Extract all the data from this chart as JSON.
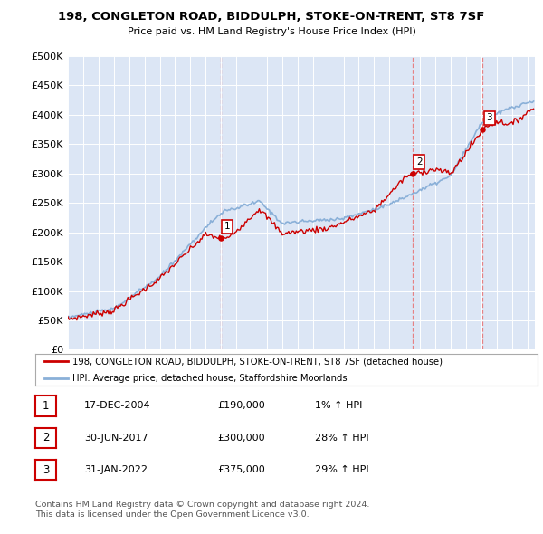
{
  "title": "198, CONGLETON ROAD, BIDDULPH, STOKE-ON-TRENT, ST8 7SF",
  "subtitle": "Price paid vs. HM Land Registry's House Price Index (HPI)",
  "ylim": [
    0,
    500000
  ],
  "yticks": [
    0,
    50000,
    100000,
    150000,
    200000,
    250000,
    300000,
    350000,
    400000,
    450000,
    500000
  ],
  "ytick_labels": [
    "£0",
    "£50K",
    "£100K",
    "£150K",
    "£200K",
    "£250K",
    "£300K",
    "£350K",
    "£400K",
    "£450K",
    "£500K"
  ],
  "house_color": "#cc0000",
  "hpi_color": "#8ab0d8",
  "bg_color": "#dce6f5",
  "plot_bg": "#ffffff",
  "transaction_dates": [
    2004.96,
    2017.5,
    2022.08
  ],
  "transaction_prices": [
    190000,
    300000,
    375000
  ],
  "transaction_labels": [
    "1",
    "2",
    "3"
  ],
  "vline_color": "#e87070",
  "legend_entries": [
    "198, CONGLETON ROAD, BIDDULPH, STOKE-ON-TRENT, ST8 7SF (detached house)",
    "HPI: Average price, detached house, Staffordshire Moorlands"
  ],
  "table_rows": [
    [
      "1",
      "17-DEC-2004",
      "£190,000",
      "1% ↑ HPI"
    ],
    [
      "2",
      "30-JUN-2017",
      "£300,000",
      "28% ↑ HPI"
    ],
    [
      "3",
      "31-JAN-2022",
      "£375,000",
      "29% ↑ HPI"
    ]
  ],
  "footer": "Contains HM Land Registry data © Crown copyright and database right 2024.\nThis data is licensed under the Open Government Licence v3.0.",
  "xmin": 1995.0,
  "xmax": 2025.5
}
